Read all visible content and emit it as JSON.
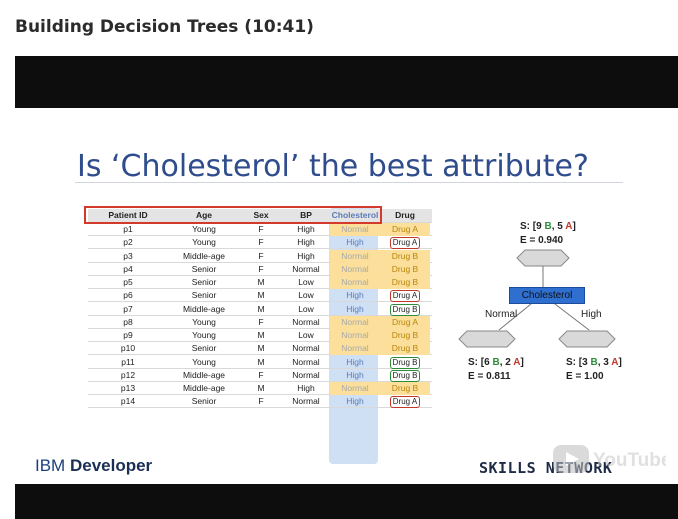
{
  "page": {
    "title": "Building Decision Trees (10:41)"
  },
  "slide": {
    "title": "Is ‘Cholesterol’ the best attribute?",
    "footer_left_prefix": "IBM",
    "footer_left_bold": "Developer",
    "footer_right": "SKILLS NETWORK",
    "watermark": "YouTube"
  },
  "table": {
    "headers": [
      "Patient ID",
      "Age",
      "Sex",
      "BP",
      "Cholesterol",
      "Drug"
    ],
    "rows": [
      [
        "p1",
        "Young",
        "F",
        "High",
        "Normal",
        "Drug A"
      ],
      [
        "p2",
        "Young",
        "F",
        "High",
        "High",
        "Drug A"
      ],
      [
        "p3",
        "Middle-age",
        "F",
        "High",
        "Normal",
        "Drug B"
      ],
      [
        "p4",
        "Senior",
        "F",
        "Normal",
        "Normal",
        "Drug B"
      ],
      [
        "p5",
        "Senior",
        "M",
        "Low",
        "Normal",
        "Drug B"
      ],
      [
        "p6",
        "Senior",
        "M",
        "Low",
        "High",
        "Drug A"
      ],
      [
        "p7",
        "Middle-age",
        "M",
        "Low",
        "High",
        "Drug B"
      ],
      [
        "p8",
        "Young",
        "F",
        "Normal",
        "Normal",
        "Drug A"
      ],
      [
        "p9",
        "Young",
        "M",
        "Low",
        "Normal",
        "Drug B"
      ],
      [
        "p10",
        "Senior",
        "M",
        "Normal",
        "Normal",
        "Drug B"
      ],
      [
        "p11",
        "Young",
        "M",
        "Normal",
        "High",
        "Drug B"
      ],
      [
        "p12",
        "Middle-age",
        "F",
        "Normal",
        "High",
        "Drug B"
      ],
      [
        "p13",
        "Middle-age",
        "M",
        "High",
        "Normal",
        "Drug B"
      ],
      [
        "p14",
        "Senior",
        "F",
        "Normal",
        "High",
        "Drug A"
      ]
    ]
  },
  "tree": {
    "root_s_prefix": "S: [9 ",
    "root_s_b": "B",
    "root_s_mid": ", 5 ",
    "root_s_a": "A",
    "root_s_suffix": "]",
    "root_e": "E = 0.940",
    "node_label": "Cholesterol",
    "left_branch": "Normal",
    "right_branch": "High",
    "left_s_prefix": "S: [6 ",
    "left_s_b": "B",
    "left_s_mid": ", 2 ",
    "left_s_a": "A",
    "left_s_suffix": "]",
    "left_e": "E = 0.811",
    "right_s_prefix": "S: [3 ",
    "right_s_b": "B",
    "right_s_mid": ", 3 ",
    "right_s_a": "A",
    "right_s_suffix": "]",
    "right_e": "E = 1.00"
  },
  "colors": {
    "title_blue": "#2f4d8c",
    "node_blue": "#2f6fd0",
    "highlight_yellow": "#fbdf9a",
    "red": "#c0392b",
    "green": "#2e8b3a"
  }
}
